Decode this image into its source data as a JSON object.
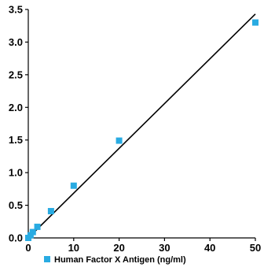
{
  "chart_data": {
    "type": "scatter",
    "title": "",
    "xlabel": "",
    "ylabel": "",
    "xlim": [
      0,
      50
    ],
    "ylim": [
      0,
      3.5
    ],
    "x_ticks": [
      0,
      10,
      20,
      30,
      40,
      50
    ],
    "y_ticks": [
      0.0,
      0.5,
      1.0,
      1.5,
      2.0,
      2.5,
      3.0,
      3.5
    ],
    "x_tick_labels": [
      "0",
      "10",
      "20",
      "30",
      "40",
      "50"
    ],
    "y_tick_labels": [
      "0.0",
      "0.5",
      "1.0",
      "1.5",
      "2.0",
      "2.5",
      "3.0",
      "3.5"
    ],
    "grid": false,
    "legend_position": "bottom-left",
    "series": [
      {
        "name": "Human Factor X Antigen (ng/ml)",
        "color": "#29abe2",
        "marker": "square",
        "x": [
          0,
          0.5,
          1,
          2,
          5,
          10,
          20,
          50
        ],
        "y": [
          0.0,
          0.04,
          0.09,
          0.17,
          0.41,
          0.8,
          1.49,
          3.3
        ]
      }
    ],
    "trendline": {
      "color": "#000000",
      "x": [
        0,
        50
      ],
      "y": [
        0.0,
        3.43
      ]
    }
  }
}
